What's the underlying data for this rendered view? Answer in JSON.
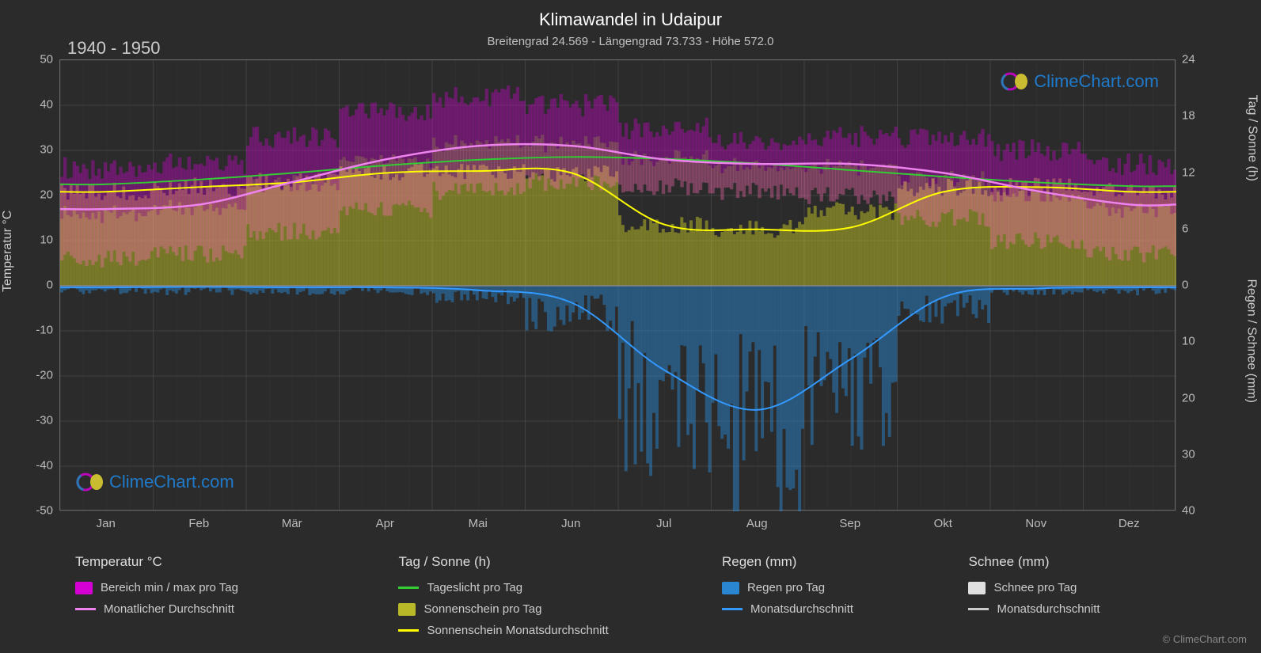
{
  "title": "Klimawandel in Udaipur",
  "subtitle": "Breitengrad 24.569 - Längengrad 73.733 - Höhe 572.0",
  "period": "1940 - 1950",
  "watermark_text": "ClimeChart.com",
  "copyright": "© ClimeChart.com",
  "chart": {
    "background_color": "#2b2b2b",
    "grid_color": "#555555",
    "axis_color": "#888888",
    "text_color": "#cccccc",
    "y_left": {
      "label": "Temperatur °C",
      "min": -50,
      "max": 50,
      "ticks": [
        -50,
        -40,
        -30,
        -20,
        -10,
        0,
        10,
        20,
        30,
        40,
        50
      ]
    },
    "y_right_upper": {
      "label": "Tag / Sonne (h)",
      "min": 0,
      "max": 24,
      "ticks": [
        0,
        6,
        12,
        18,
        24
      ]
    },
    "y_right_lower": {
      "label": "Regen / Schnee (mm)",
      "min": 0,
      "max": 40,
      "ticks": [
        0,
        10,
        20,
        30,
        40
      ]
    },
    "x": {
      "labels": [
        "Jan",
        "Feb",
        "Mär",
        "Apr",
        "Mai",
        "Jun",
        "Jul",
        "Aug",
        "Sep",
        "Okt",
        "Nov",
        "Dez"
      ]
    },
    "series": {
      "temp_range": {
        "color_top": "#d400d4",
        "color_bottom": "#ff69b4",
        "max": [
          26,
          27,
          33,
          39,
          42,
          40,
          35,
          32,
          33,
          33,
          30,
          27
        ],
        "min": [
          6,
          7,
          12,
          17,
          21,
          23,
          22,
          21,
          20,
          15,
          10,
          7
        ]
      },
      "temp_avg": {
        "color": "#ee82ee",
        "values": [
          17,
          18,
          23,
          28,
          31,
          31,
          28,
          27,
          27,
          25,
          21,
          18
        ]
      },
      "daylight": {
        "color": "#33cc33",
        "values": [
          10.8,
          11.3,
          12.0,
          12.8,
          13.4,
          13.7,
          13.5,
          13.0,
          12.3,
          11.6,
          11.0,
          10.6
        ]
      },
      "sunshine_fill": {
        "color": "#b8b828",
        "values": [
          10,
          10.5,
          11,
          12,
          12.2,
          12,
          6.5,
          6,
          8,
          10.5,
          10.5,
          10
        ]
      },
      "sunshine_avg": {
        "color": "#ffff00",
        "values": [
          10,
          10.5,
          11,
          12,
          12.2,
          12,
          6.5,
          6,
          6.2,
          10,
          10.5,
          10
        ]
      },
      "rain_daily": {
        "color": "#2a86d0",
        "values": [
          1,
          1,
          1,
          1,
          2,
          5,
          20,
          28,
          18,
          4,
          1,
          1
        ]
      },
      "rain_avg": {
        "color": "#3399ff",
        "values": [
          0.3,
          0.2,
          0.3,
          0.3,
          0.8,
          3,
          15,
          22,
          13,
          2,
          0.5,
          0.3
        ]
      },
      "snow_daily": {
        "color": "#e0e0e0",
        "values": [
          0,
          0,
          0,
          0,
          0,
          0,
          0,
          0,
          0,
          0,
          0,
          0
        ]
      },
      "snow_avg": {
        "color": "#cccccc",
        "values": [
          0,
          0,
          0,
          0,
          0,
          0,
          0,
          0,
          0,
          0,
          0,
          0
        ]
      }
    }
  },
  "legend": {
    "groups": [
      {
        "header": "Temperatur °C",
        "items": [
          {
            "type": "swatch",
            "color": "#d400d4",
            "label": "Bereich min / max pro Tag"
          },
          {
            "type": "line",
            "color": "#ee82ee",
            "label": "Monatlicher Durchschnitt"
          }
        ]
      },
      {
        "header": "Tag / Sonne (h)",
        "items": [
          {
            "type": "line",
            "color": "#33cc33",
            "label": "Tageslicht pro Tag"
          },
          {
            "type": "swatch",
            "color": "#b8b828",
            "label": "Sonnenschein pro Tag"
          },
          {
            "type": "line",
            "color": "#ffff00",
            "label": "Sonnenschein Monatsdurchschnitt"
          }
        ]
      },
      {
        "header": "Regen (mm)",
        "items": [
          {
            "type": "swatch",
            "color": "#2a86d0",
            "label": "Regen pro Tag"
          },
          {
            "type": "line",
            "color": "#3399ff",
            "label": "Monatsdurchschnitt"
          }
        ]
      },
      {
        "header": "Schnee (mm)",
        "items": [
          {
            "type": "swatch",
            "color": "#e0e0e0",
            "label": "Schnee pro Tag"
          },
          {
            "type": "line",
            "color": "#cccccc",
            "label": "Monatsdurchschnitt"
          }
        ]
      }
    ]
  }
}
